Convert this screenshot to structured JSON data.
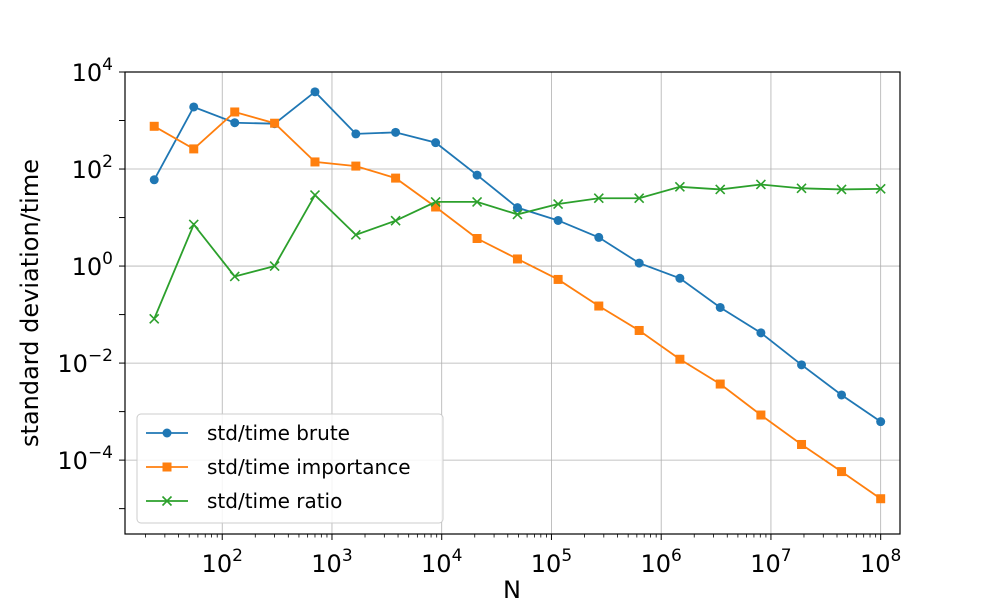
{
  "chart_data": {
    "type": "line",
    "xlabel": "N",
    "ylabel": "standard deviation/time",
    "xscale": "log",
    "yscale": "log",
    "xlim": [
      13,
      150000000
    ],
    "ylim": [
      3e-06,
      10000
    ],
    "grid": true,
    "legend_position": "lower-left",
    "x_ticks": [
      {
        "base": "10",
        "exp": "2",
        "value": 100
      },
      {
        "base": "10",
        "exp": "3",
        "value": 1000
      },
      {
        "base": "10",
        "exp": "4",
        "value": 10000
      },
      {
        "base": "10",
        "exp": "5",
        "value": 100000
      },
      {
        "base": "10",
        "exp": "6",
        "value": 1000000
      },
      {
        "base": "10",
        "exp": "7",
        "value": 10000000
      },
      {
        "base": "10",
        "exp": "8",
        "value": 100000000
      }
    ],
    "y_ticks": [
      {
        "base": "10",
        "exp": "4",
        "value": 10000
      },
      {
        "base": "10",
        "exp": "2",
        "value": 100
      },
      {
        "base": "10",
        "exp": "0",
        "value": 1
      },
      {
        "base": "10",
        "exp": "−2",
        "value": 0.01
      },
      {
        "base": "10",
        "exp": "−4",
        "value": 0.0001
      }
    ],
    "x": [
      24,
      55,
      130,
      300,
      700,
      1650,
      3800,
      8800,
      21000,
      49000,
      115000,
      270000,
      630000,
      1480000,
      3450000,
      8100000,
      19000000,
      44000000,
      100000000
    ],
    "series": [
      {
        "name": "std/time brute",
        "color": "#1f77b4",
        "marker": "circle",
        "values": [
          60,
          1900,
          900,
          860,
          3900,
          530,
          570,
          350,
          75,
          16,
          8.7,
          3.9,
          1.15,
          0.56,
          0.14,
          0.042,
          0.0092,
          0.0022,
          0.00062
        ]
      },
      {
        "name": "std/time importance",
        "color": "#ff7f0e",
        "marker": "square",
        "values": [
          760,
          260,
          1500,
          880,
          140,
          115,
          65,
          16.5,
          3.7,
          1.4,
          0.53,
          0.15,
          0.047,
          0.012,
          0.0037,
          0.00085,
          0.00021,
          5.8e-05,
          1.6e-05
        ]
      },
      {
        "name": "std/time ratio",
        "color": "#2ca02c",
        "marker": "x",
        "values": [
          0.082,
          7.2,
          0.61,
          1.0,
          29,
          4.4,
          8.6,
          21,
          21,
          11.6,
          19,
          25,
          25,
          43,
          38,
          48,
          40,
          38,
          39
        ]
      }
    ]
  }
}
